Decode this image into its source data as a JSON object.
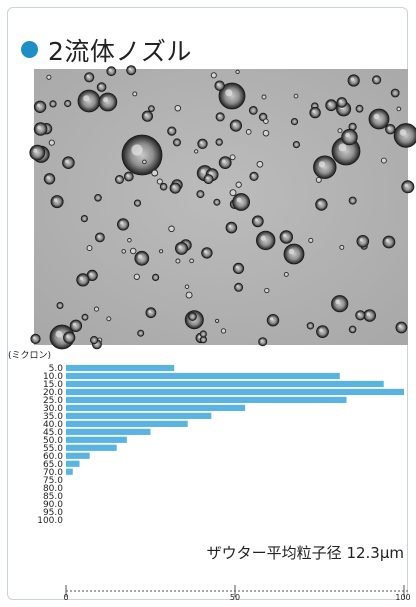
{
  "title": "2流体ノズル",
  "colors": {
    "accent": "#1e8fc6",
    "bar": "#59b4e3",
    "axis": "#555555"
  },
  "image": {
    "description_name": "droplet-micrograph"
  },
  "chart_data": {
    "type": "bar",
    "orientation": "horizontal",
    "ylabel": "(ミクロン)",
    "categories": [
      "5.0",
      "10.0",
      "15.0",
      "20.0",
      "25.0",
      "30.0",
      "35.0",
      "40.0",
      "45.0",
      "50.0",
      "55.0",
      "60.0",
      "65.0",
      "70.0",
      "75.0",
      "80.0",
      "85.0",
      "90.0",
      "95.0",
      "100.0"
    ],
    "values": [
      32,
      81,
      94,
      100,
      83,
      53,
      43,
      36,
      25,
      18,
      15,
      7,
      4,
      2,
      0,
      0,
      0,
      0,
      0,
      0
    ],
    "xlim": [
      0,
      100
    ],
    "xticks": [
      "0",
      "50",
      "100"
    ],
    "grid": false,
    "annotation": "ザウター平均粒子径  12.3μm"
  }
}
